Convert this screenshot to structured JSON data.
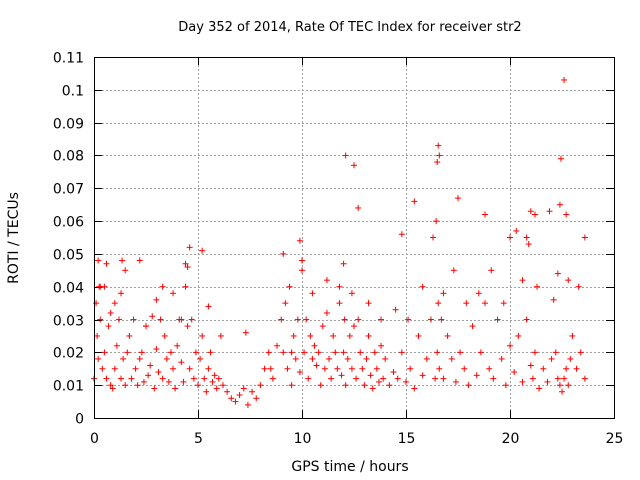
{
  "chart_data": {
    "type": "scatter",
    "title": "Day 352 of 2014, Rate Of TEC Index for receiver str2",
    "xlabel": "GPS time / hours",
    "ylabel": "ROTI / TECUs",
    "xlim": [
      0,
      25
    ],
    "ylim": [
      0,
      0.11
    ],
    "xticks": [
      0,
      5,
      10,
      15,
      20,
      25
    ],
    "yticks": [
      0,
      0.01,
      0.02,
      0.03,
      0.04,
      0.05,
      0.06,
      0.07,
      0.08,
      0.09,
      0.1,
      0.11
    ],
    "xtick_labels": [
      "0",
      "5",
      "10",
      "15",
      "20",
      "25"
    ],
    "ytick_labels": [
      "0",
      "0.01",
      "0.02",
      "0.03",
      "0.04",
      "0.05",
      "0.06",
      "0.07",
      "0.08",
      "0.09",
      "0.1",
      "0.11"
    ],
    "grid": true,
    "marker": "plus",
    "series_color": "#ff0000",
    "grid_color": "#a0a0a0",
    "series": [
      {
        "name": "ROTI",
        "x": [
          0.0,
          0.1,
          0.15,
          0.2,
          0.25,
          0.3,
          0.4,
          0.5,
          0.6,
          0.7,
          0.8,
          0.9,
          1.0,
          1.1,
          1.2,
          1.3,
          1.35,
          1.4,
          1.5,
          1.6,
          1.7,
          1.8,
          1.9,
          2.0,
          2.1,
          2.2,
          2.3,
          2.4,
          2.5,
          2.6,
          2.7,
          2.8,
          2.9,
          3.0,
          3.1,
          3.2,
          3.3,
          3.4,
          3.5,
          3.6,
          3.7,
          3.8,
          3.9,
          4.0,
          4.1,
          4.2,
          4.3,
          4.4,
          4.5,
          4.6,
          4.7,
          4.8,
          4.9,
          5.0,
          5.1,
          5.2,
          5.3,
          5.4,
          5.5,
          5.6,
          5.7,
          5.8,
          5.9,
          6.0,
          6.2,
          6.4,
          6.6,
          6.8,
          7.0,
          7.2,
          7.4,
          7.6,
          7.8,
          8.0,
          8.2,
          8.4,
          8.6,
          8.8,
          9.0,
          9.1,
          9.2,
          9.3,
          9.4,
          9.5,
          9.6,
          9.7,
          9.8,
          9.9,
          10.0,
          10.1,
          10.2,
          10.3,
          10.4,
          10.5,
          10.6,
          10.7,
          10.8,
          10.9,
          11.0,
          11.1,
          11.2,
          11.3,
          11.4,
          11.5,
          11.6,
          11.7,
          11.8,
          11.9,
          12.0,
          12.05,
          12.1,
          12.2,
          12.3,
          12.4,
          12.5,
          12.6,
          12.7,
          12.8,
          12.9,
          13.0,
          13.1,
          13.2,
          13.3,
          13.4,
          13.5,
          13.6,
          13.7,
          13.8,
          13.9,
          14.0,
          14.2,
          14.4,
          14.6,
          14.8,
          15.0,
          15.2,
          15.4,
          15.6,
          15.8,
          16.0,
          16.2,
          16.4,
          16.5,
          16.55,
          16.6,
          16.7,
          16.8,
          17.0,
          17.2,
          17.4,
          17.6,
          17.8,
          18.0,
          18.2,
          18.4,
          18.6,
          18.8,
          19.0,
          19.2,
          19.4,
          19.6,
          19.8,
          20.0,
          20.2,
          20.4,
          20.6,
          20.8,
          21.0,
          21.1,
          21.2,
          21.4,
          21.6,
          21.8,
          22.0,
          22.2,
          22.3,
          22.4,
          22.5,
          22.6,
          22.7,
          22.8,
          22.9,
          23.0,
          23.2,
          23.4,
          23.6,
          0.3,
          0.6,
          1.3,
          2.2,
          3.0,
          4.4,
          4.5,
          4.6,
          5.2,
          9.1,
          9.9,
          10.0,
          12.0,
          12.1,
          12.5,
          12.7,
          14.8,
          15.4,
          16.3,
          16.45,
          16.5,
          16.55,
          16.6,
          17.5,
          18.8,
          20.0,
          20.3,
          20.8,
          20.9,
          21.0,
          21.2,
          21.9,
          22.3,
          22.4,
          22.45,
          22.6,
          22.7,
          23.6,
          0.2,
          0.5,
          0.8,
          1.0,
          1.5,
          2.5,
          3.3,
          3.8,
          4.2,
          5.5,
          6.1,
          7.3,
          8.5,
          9.5,
          10.5,
          11.2,
          11.8,
          12.4,
          13.2,
          13.8,
          14.5,
          15.1,
          15.8,
          16.8,
          17.3,
          17.9,
          18.5,
          19.1,
          19.7,
          20.6,
          21.3,
          22.1,
          22.8,
          23.3
        ],
        "y": [
          0.012,
          0.035,
          0.025,
          0.018,
          0.04,
          0.03,
          0.015,
          0.02,
          0.012,
          0.028,
          0.01,
          0.009,
          0.015,
          0.022,
          0.03,
          0.012,
          0.048,
          0.018,
          0.01,
          0.02,
          0.025,
          0.012,
          0.03,
          0.015,
          0.01,
          0.018,
          0.02,
          0.011,
          0.028,
          0.013,
          0.016,
          0.031,
          0.009,
          0.021,
          0.014,
          0.03,
          0.012,
          0.025,
          0.018,
          0.011,
          0.02,
          0.015,
          0.009,
          0.022,
          0.03,
          0.017,
          0.011,
          0.047,
          0.028,
          0.015,
          0.03,
          0.012,
          0.02,
          0.01,
          0.018,
          0.025,
          0.012,
          0.008,
          0.015,
          0.02,
          0.011,
          0.013,
          0.009,
          0.012,
          0.01,
          0.008,
          0.006,
          0.005,
          0.007,
          0.009,
          0.004,
          0.008,
          0.006,
          0.01,
          0.015,
          0.02,
          0.012,
          0.022,
          0.03,
          0.02,
          0.035,
          0.015,
          0.04,
          0.01,
          0.025,
          0.018,
          0.03,
          0.014,
          0.045,
          0.02,
          0.03,
          0.012,
          0.025,
          0.018,
          0.022,
          0.016,
          0.02,
          0.01,
          0.028,
          0.015,
          0.032,
          0.018,
          0.012,
          0.025,
          0.02,
          0.015,
          0.035,
          0.013,
          0.02,
          0.03,
          0.01,
          0.018,
          0.025,
          0.015,
          0.028,
          0.012,
          0.03,
          0.02,
          0.015,
          0.01,
          0.018,
          0.025,
          0.013,
          0.009,
          0.02,
          0.015,
          0.011,
          0.022,
          0.012,
          0.018,
          0.01,
          0.014,
          0.012,
          0.02,
          0.011,
          0.015,
          0.009,
          0.025,
          0.013,
          0.018,
          0.03,
          0.012,
          0.02,
          0.035,
          0.015,
          0.03,
          0.012,
          0.025,
          0.018,
          0.011,
          0.02,
          0.015,
          0.01,
          0.028,
          0.013,
          0.02,
          0.035,
          0.015,
          0.012,
          0.03,
          0.018,
          0.01,
          0.022,
          0.014,
          0.025,
          0.011,
          0.03,
          0.016,
          0.012,
          0.02,
          0.009,
          0.015,
          0.011,
          0.018,
          0.02,
          0.012,
          0.01,
          0.008,
          0.012,
          0.015,
          0.01,
          0.018,
          0.025,
          0.015,
          0.02,
          0.012,
          0.04,
          0.047,
          0.038,
          0.048,
          0.036,
          0.04,
          0.046,
          0.052,
          0.051,
          0.05,
          0.054,
          0.048,
          0.047,
          0.08,
          0.077,
          0.064,
          0.056,
          0.066,
          0.055,
          0.06,
          0.078,
          0.083,
          0.08,
          0.067,
          0.062,
          0.055,
          0.057,
          0.055,
          0.053,
          0.063,
          0.062,
          0.063,
          0.044,
          0.065,
          0.079,
          0.103,
          0.062,
          0.055,
          0.048,
          0.04,
          0.032,
          0.035,
          0.045,
          0.028,
          0.04,
          0.038,
          0.03,
          0.034,
          0.025,
          0.026,
          0.015,
          0.02,
          0.038,
          0.042,
          0.04,
          0.038,
          0.035,
          0.03,
          0.033,
          0.03,
          0.04,
          0.038,
          0.045,
          0.035,
          0.038,
          0.045,
          0.035,
          0.042,
          0.04,
          0.036,
          0.042,
          0.04
        ]
      }
    ]
  }
}
